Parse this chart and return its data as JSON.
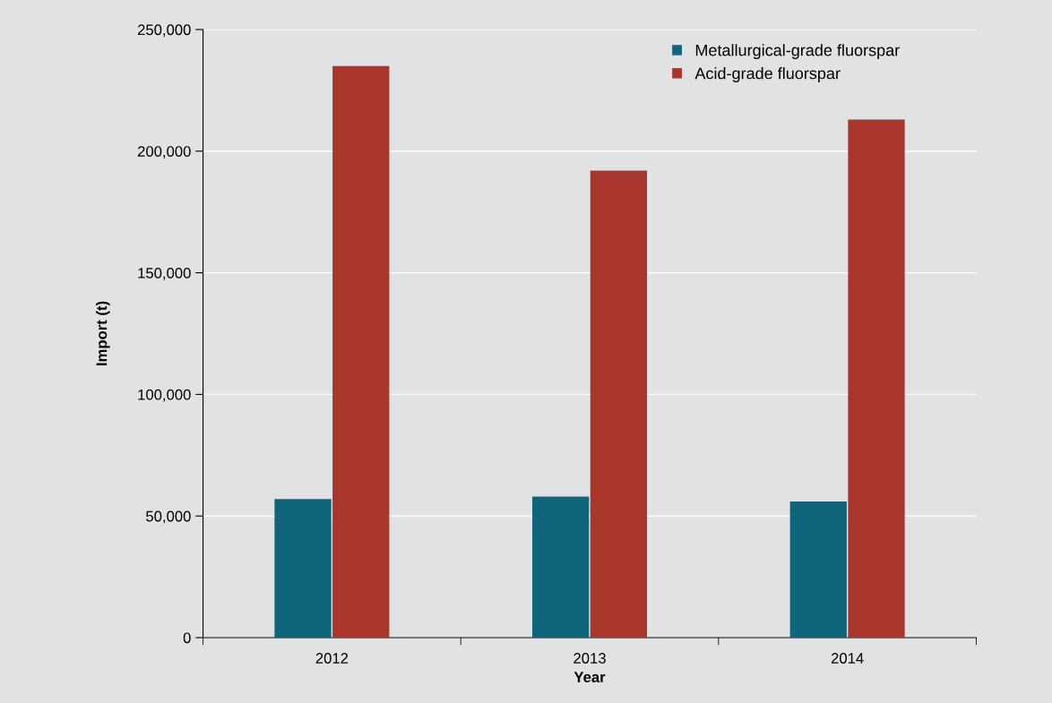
{
  "chart_data": {
    "type": "bar",
    "xlabel": "Year",
    "ylabel": "Import (t)",
    "categories": [
      "2012",
      "2013",
      "2014"
    ],
    "series": [
      {
        "name": "Metallurgical-grade fluorspar",
        "color": "#10657b",
        "values": [
          57000,
          58000,
          56000
        ]
      },
      {
        "name": "Acid-grade fluorspar",
        "color": "#a9362c",
        "values": [
          235000,
          192000,
          213000
        ]
      }
    ],
    "ylim": [
      0,
      250000
    ],
    "yticks": [
      {
        "value": 0,
        "label": "0"
      },
      {
        "value": 50000,
        "label": "50,000"
      },
      {
        "value": 100000,
        "label": "100,000"
      },
      {
        "value": 150000,
        "label": "150,000"
      },
      {
        "value": 200000,
        "label": "200,000"
      },
      {
        "value": 250000,
        "label": "250,000"
      }
    ],
    "grid": "y",
    "legend": "top right"
  }
}
